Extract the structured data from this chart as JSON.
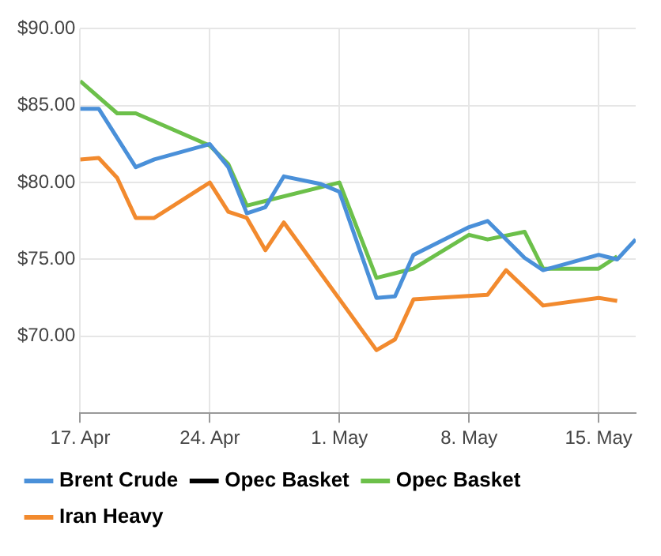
{
  "chart_data": {
    "type": "line",
    "xlim": [
      "--04-17",
      "--05-17"
    ],
    "xticks": [
      {
        "value": "--04-17",
        "label": "17. Apr"
      },
      {
        "value": "--04-24",
        "label": "24. Apr"
      },
      {
        "value": "--05-01",
        "label": "1. May"
      },
      {
        "value": "--05-08",
        "label": "8. May"
      },
      {
        "value": "--05-15",
        "label": "15. May"
      }
    ],
    "ylim": [
      65,
      90
    ],
    "yticks": [
      {
        "value": 70,
        "label": "$70.00"
      },
      {
        "value": 75,
        "label": "$75.00"
      },
      {
        "value": 80,
        "label": "$80.00"
      },
      {
        "value": 85,
        "label": "$85.00"
      },
      {
        "value": 90,
        "label": "$90.00"
      }
    ],
    "grid": true,
    "legend": "bottom",
    "marker": "none",
    "line_style": "solid",
    "series": [
      {
        "name": "Brent Crude",
        "color": "#4a90d9",
        "x": [
          "--04-17",
          "--04-18",
          "--04-20",
          "--04-21",
          "--04-24",
          "--04-25",
          "--04-26",
          "--04-27",
          "--04-28",
          "--04-30",
          "--05-01",
          "--05-03",
          "--05-04",
          "--05-05",
          "--05-08",
          "--05-09",
          "--05-11",
          "--05-12",
          "--05-15",
          "--05-16",
          "--05-17"
        ],
        "values": [
          84.8,
          84.8,
          81.0,
          81.5,
          82.5,
          81.0,
          78.0,
          78.4,
          80.4,
          79.9,
          79.4,
          72.5,
          72.6,
          75.3,
          77.1,
          77.5,
          75.1,
          74.3,
          75.3,
          75.0,
          76.3
        ]
      },
      {
        "name": "Opec Basket",
        "color": "#000000"
      },
      {
        "name": "Opec Basket",
        "color": "#6cc04a",
        "x": [
          "--04-17",
          "--04-19",
          "--04-20",
          "--04-24",
          "--04-25",
          "--04-26",
          "--04-27",
          "--05-01",
          "--05-03",
          "--05-04",
          "--05-05",
          "--05-08",
          "--05-09",
          "--05-11",
          "--05-12",
          "--05-15",
          "--05-16"
        ],
        "values": [
          86.6,
          84.5,
          84.5,
          82.4,
          81.2,
          78.5,
          78.8,
          80.0,
          73.8,
          74.1,
          74.4,
          76.6,
          76.3,
          76.8,
          74.4,
          74.4,
          75.2
        ]
      },
      {
        "name": "Iran Heavy",
        "color": "#f28a2e",
        "x": [
          "--04-17",
          "--04-18",
          "--04-19",
          "--04-20",
          "--04-21",
          "--04-24",
          "--04-25",
          "--04-26",
          "--04-27",
          "--04-28",
          "--05-03",
          "--05-04",
          "--05-05",
          "--05-09",
          "--05-10",
          "--05-12",
          "--05-15",
          "--05-16"
        ],
        "values": [
          81.5,
          81.6,
          80.3,
          77.7,
          77.7,
          80.0,
          78.1,
          77.7,
          75.6,
          77.4,
          69.1,
          69.8,
          72.4,
          72.7,
          74.3,
          72.0,
          72.5,
          72.3
        ]
      }
    ]
  }
}
